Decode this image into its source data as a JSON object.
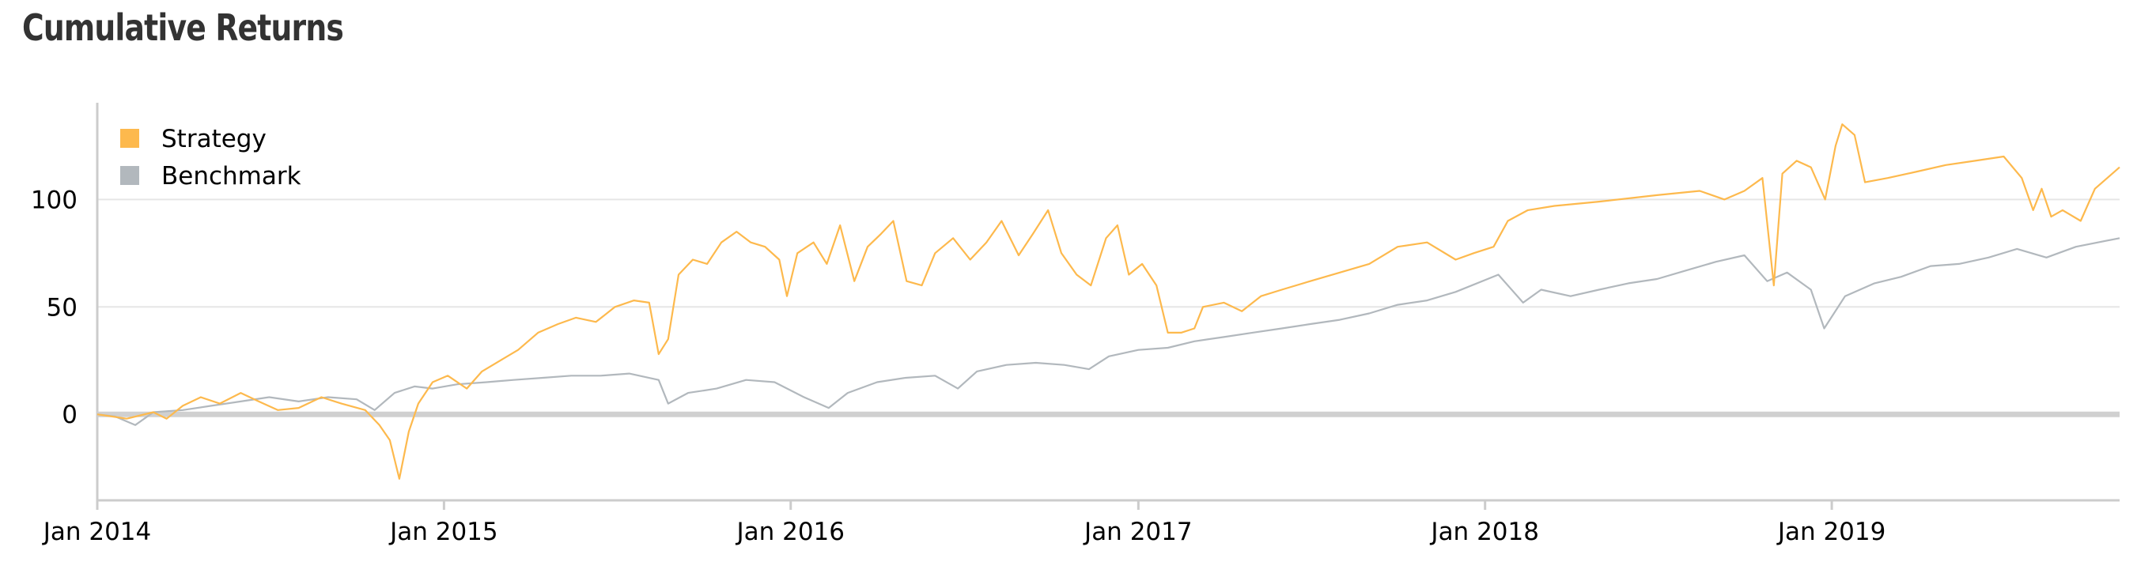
{
  "chart_data": {
    "type": "line",
    "title": "Cumulative Returns",
    "xlabel": "",
    "ylabel": "",
    "x_range": [
      "2014-01-01",
      "2019-10-31"
    ],
    "ylim": [
      -40,
      145
    ],
    "grid": true,
    "legend_position": "top-left",
    "x_ticks": [
      {
        "date": "2014-01-01",
        "label": "Jan 2014"
      },
      {
        "date": "2015-01-01",
        "label": "Jan 2015"
      },
      {
        "date": "2016-01-01",
        "label": "Jan 2016"
      },
      {
        "date": "2017-01-01",
        "label": "Jan 2017"
      },
      {
        "date": "2018-01-01",
        "label": "Jan 2018"
      },
      {
        "date": "2019-01-01",
        "label": "Jan 2019"
      }
    ],
    "y_ticks": [
      {
        "value": 0,
        "label": "0"
      },
      {
        "value": 50,
        "label": "50"
      },
      {
        "value": 100,
        "label": "100"
      }
    ],
    "series": [
      {
        "name": "Strategy",
        "color": "#fdb94d",
        "points": [
          [
            "2014-01-01",
            0
          ],
          [
            "2014-02-01",
            -2
          ],
          [
            "2014-03-01",
            1
          ],
          [
            "2014-03-15",
            -2
          ],
          [
            "2014-04-01",
            4
          ],
          [
            "2014-04-20",
            8
          ],
          [
            "2014-05-10",
            5
          ],
          [
            "2014-06-01",
            10
          ],
          [
            "2014-06-20",
            6
          ],
          [
            "2014-07-10",
            2
          ],
          [
            "2014-08-01",
            3
          ],
          [
            "2014-08-25",
            8
          ],
          [
            "2014-09-15",
            5
          ],
          [
            "2014-10-10",
            2
          ],
          [
            "2014-10-25",
            -5
          ],
          [
            "2014-11-05",
            -12
          ],
          [
            "2014-11-15",
            -30
          ],
          [
            "2014-11-25",
            -8
          ],
          [
            "2014-12-05",
            5
          ],
          [
            "2014-12-20",
            15
          ],
          [
            "2015-01-05",
            18
          ],
          [
            "2015-01-25",
            12
          ],
          [
            "2015-02-10",
            20
          ],
          [
            "2015-03-01",
            25
          ],
          [
            "2015-03-20",
            30
          ],
          [
            "2015-04-10",
            38
          ],
          [
            "2015-05-01",
            42
          ],
          [
            "2015-05-20",
            45
          ],
          [
            "2015-06-10",
            43
          ],
          [
            "2015-06-30",
            50
          ],
          [
            "2015-07-20",
            53
          ],
          [
            "2015-08-05",
            52
          ],
          [
            "2015-08-15",
            28
          ],
          [
            "2015-08-25",
            35
          ],
          [
            "2015-09-05",
            65
          ],
          [
            "2015-09-20",
            72
          ],
          [
            "2015-10-05",
            70
          ],
          [
            "2015-10-20",
            80
          ],
          [
            "2015-11-05",
            85
          ],
          [
            "2015-11-20",
            80
          ],
          [
            "2015-12-05",
            78
          ],
          [
            "2015-12-20",
            72
          ],
          [
            "2015-12-28",
            55
          ],
          [
            "2016-01-08",
            75
          ],
          [
            "2016-01-25",
            80
          ],
          [
            "2016-02-08",
            70
          ],
          [
            "2016-02-22",
            88
          ],
          [
            "2016-03-08",
            62
          ],
          [
            "2016-03-22",
            78
          ],
          [
            "2016-04-05",
            84
          ],
          [
            "2016-04-18",
            90
          ],
          [
            "2016-05-02",
            62
          ],
          [
            "2016-05-18",
            60
          ],
          [
            "2016-06-01",
            75
          ],
          [
            "2016-06-20",
            82
          ],
          [
            "2016-07-08",
            72
          ],
          [
            "2016-07-25",
            80
          ],
          [
            "2016-08-10",
            90
          ],
          [
            "2016-08-28",
            74
          ],
          [
            "2016-09-12",
            84
          ],
          [
            "2016-09-28",
            95
          ],
          [
            "2016-10-12",
            75
          ],
          [
            "2016-10-28",
            65
          ],
          [
            "2016-11-12",
            60
          ],
          [
            "2016-11-28",
            82
          ],
          [
            "2016-12-10",
            88
          ],
          [
            "2016-12-22",
            65
          ],
          [
            "2017-01-05",
            70
          ],
          [
            "2017-01-20",
            60
          ],
          [
            "2017-02-01",
            38
          ],
          [
            "2017-02-15",
            38
          ],
          [
            "2017-03-01",
            40
          ],
          [
            "2017-03-10",
            50
          ],
          [
            "2017-04-01",
            52
          ],
          [
            "2017-04-20",
            48
          ],
          [
            "2017-05-10",
            55
          ],
          [
            "2017-06-01",
            58
          ],
          [
            "2017-07-01",
            62
          ],
          [
            "2017-08-01",
            66
          ],
          [
            "2017-09-01",
            70
          ],
          [
            "2017-10-01",
            78
          ],
          [
            "2017-11-01",
            80
          ],
          [
            "2017-12-01",
            72
          ],
          [
            "2017-12-20",
            75
          ],
          [
            "2018-01-10",
            78
          ],
          [
            "2018-01-25",
            90
          ],
          [
            "2018-02-15",
            95
          ],
          [
            "2018-03-15",
            97
          ],
          [
            "2018-05-01",
            99
          ],
          [
            "2018-07-01",
            102
          ],
          [
            "2018-08-15",
            104
          ],
          [
            "2018-09-10",
            100
          ],
          [
            "2018-10-01",
            104
          ],
          [
            "2018-10-20",
            110
          ],
          [
            "2018-11-01",
            60
          ],
          [
            "2018-11-10",
            112
          ],
          [
            "2018-11-25",
            118
          ],
          [
            "2018-12-10",
            115
          ],
          [
            "2018-12-25",
            100
          ],
          [
            "2019-01-05",
            125
          ],
          [
            "2019-01-12",
            135
          ],
          [
            "2019-01-25",
            130
          ],
          [
            "2019-02-05",
            108
          ],
          [
            "2019-03-01",
            110
          ],
          [
            "2019-04-01",
            113
          ],
          [
            "2019-05-01",
            116
          ],
          [
            "2019-06-01",
            118
          ],
          [
            "2019-07-01",
            120
          ],
          [
            "2019-07-20",
            110
          ],
          [
            "2019-08-01",
            95
          ],
          [
            "2019-08-10",
            105
          ],
          [
            "2019-08-20",
            92
          ],
          [
            "2019-09-01",
            95
          ],
          [
            "2019-09-20",
            90
          ],
          [
            "2019-10-05",
            105
          ],
          [
            "2019-10-31",
            115
          ]
        ]
      },
      {
        "name": "Benchmark",
        "color": "#b2b8bd",
        "points": [
          [
            "2014-01-01",
            0
          ],
          [
            "2014-01-20",
            -1
          ],
          [
            "2014-02-10",
            -5
          ],
          [
            "2014-03-01",
            1
          ],
          [
            "2014-04-01",
            2
          ],
          [
            "2014-05-01",
            4
          ],
          [
            "2014-06-01",
            6
          ],
          [
            "2014-07-01",
            8
          ],
          [
            "2014-08-01",
            6
          ],
          [
            "2014-09-01",
            8
          ],
          [
            "2014-10-01",
            7
          ],
          [
            "2014-10-20",
            2
          ],
          [
            "2014-11-10",
            10
          ],
          [
            "2014-12-01",
            13
          ],
          [
            "2014-12-20",
            12
          ],
          [
            "2015-01-15",
            14
          ],
          [
            "2015-02-15",
            15
          ],
          [
            "2015-03-15",
            16
          ],
          [
            "2015-04-15",
            17
          ],
          [
            "2015-05-15",
            18
          ],
          [
            "2015-06-15",
            18
          ],
          [
            "2015-07-15",
            19
          ],
          [
            "2015-08-15",
            16
          ],
          [
            "2015-08-25",
            5
          ],
          [
            "2015-09-15",
            10
          ],
          [
            "2015-10-15",
            12
          ],
          [
            "2015-11-15",
            16
          ],
          [
            "2015-12-15",
            15
          ],
          [
            "2016-01-15",
            8
          ],
          [
            "2016-02-10",
            3
          ],
          [
            "2016-03-01",
            10
          ],
          [
            "2016-04-01",
            15
          ],
          [
            "2016-05-01",
            17
          ],
          [
            "2016-06-01",
            18
          ],
          [
            "2016-06-25",
            12
          ],
          [
            "2016-07-15",
            20
          ],
          [
            "2016-08-15",
            23
          ],
          [
            "2016-09-15",
            24
          ],
          [
            "2016-10-15",
            23
          ],
          [
            "2016-11-10",
            21
          ],
          [
            "2016-12-01",
            27
          ],
          [
            "2017-01-01",
            30
          ],
          [
            "2017-02-01",
            31
          ],
          [
            "2017-03-01",
            34
          ],
          [
            "2017-04-01",
            36
          ],
          [
            "2017-05-01",
            38
          ],
          [
            "2017-06-01",
            40
          ],
          [
            "2017-07-01",
            42
          ],
          [
            "2017-08-01",
            44
          ],
          [
            "2017-09-01",
            47
          ],
          [
            "2017-10-01",
            51
          ],
          [
            "2017-11-01",
            53
          ],
          [
            "2017-12-01",
            57
          ],
          [
            "2018-01-15",
            65
          ],
          [
            "2018-02-10",
            52
          ],
          [
            "2018-03-01",
            58
          ],
          [
            "2018-04-01",
            55
          ],
          [
            "2018-05-01",
            58
          ],
          [
            "2018-06-01",
            61
          ],
          [
            "2018-07-01",
            63
          ],
          [
            "2018-08-01",
            67
          ],
          [
            "2018-09-01",
            71
          ],
          [
            "2018-10-01",
            74
          ],
          [
            "2018-10-25",
            62
          ],
          [
            "2018-11-15",
            66
          ],
          [
            "2018-12-10",
            58
          ],
          [
            "2018-12-24",
            40
          ],
          [
            "2019-01-15",
            55
          ],
          [
            "2019-02-15",
            61
          ],
          [
            "2019-03-15",
            64
          ],
          [
            "2019-04-15",
            69
          ],
          [
            "2019-05-15",
            70
          ],
          [
            "2019-06-15",
            73
          ],
          [
            "2019-07-15",
            77
          ],
          [
            "2019-08-15",
            73
          ],
          [
            "2019-09-15",
            78
          ],
          [
            "2019-10-31",
            82
          ]
        ]
      }
    ]
  }
}
